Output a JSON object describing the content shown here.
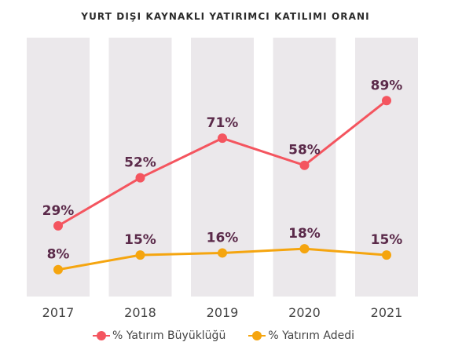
{
  "chart_data": {
    "type": "line",
    "title": "YURT DIŞI KAYNAKLI YATIRIMCI KATILIMI ORANI",
    "categories": [
      "2017",
      "2018",
      "2019",
      "2020",
      "2021"
    ],
    "series": [
      {
        "name": "% Yatırım Büyüklüğü",
        "values": [
          29,
          52,
          71,
          58,
          89
        ],
        "labels": [
          "29%",
          "52%",
          "71%",
          "58%",
          "89%"
        ],
        "color": "#f4555f"
      },
      {
        "name": "% Yatırım Adedi",
        "values": [
          8,
          15,
          16,
          18,
          15
        ],
        "labels": [
          "8%",
          "15%",
          "16%",
          "18%",
          "15%"
        ],
        "color": "#f5a50f"
      }
    ],
    "grid": false,
    "legend_position": "bottom",
    "colors": {
      "band": "#ebe8eb",
      "label": "#5b2a4a",
      "tick": "#444444"
    }
  }
}
